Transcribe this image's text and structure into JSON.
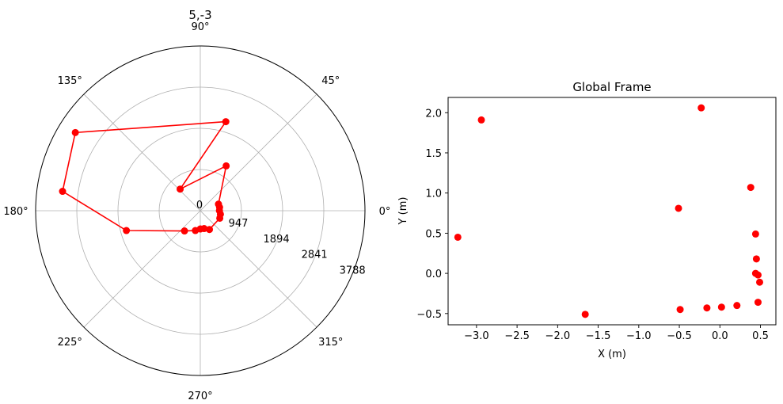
{
  "chart_data": [
    {
      "type": "scatter",
      "projection": "polar",
      "title": "5,-3",
      "theta_tick_labels": [
        "0°",
        "45°",
        "90°",
        "135°",
        "180°",
        "225°",
        "270°",
        "315°"
      ],
      "r_tick_values": [
        0,
        947,
        1894,
        2841,
        3788
      ],
      "r_tick_labels": [
        "0",
        "947",
        "1894",
        "2841",
        "3788"
      ],
      "rlim": [
        0,
        3788
      ],
      "grid": true,
      "line_connected": true,
      "marker_color": "#ff0000",
      "line_color": "#ff0000",
      "points": [
        {
          "theta_deg": 0.0,
          "r": 440
        },
        {
          "theta_deg": 350.0,
          "r": 470
        },
        {
          "theta_deg": 10.0,
          "r": 450
        },
        {
          "theta_deg": 20.0,
          "r": 445
        },
        {
          "theta_deg": 60.0,
          "r": 1190
        },
        {
          "theta_deg": 133.0,
          "r": 680
        },
        {
          "theta_deg": 74.0,
          "r": 2130
        },
        {
          "theta_deg": 148.0,
          "r": 3390
        },
        {
          "theta_deg": 172.0,
          "r": 3200
        },
        {
          "theta_deg": 195.0,
          "r": 1760
        },
        {
          "theta_deg": 232.0,
          "r": 590
        },
        {
          "theta_deg": 256.0,
          "r": 470
        },
        {
          "theta_deg": 270.0,
          "r": 420
        },
        {
          "theta_deg": 282.0,
          "r": 420
        },
        {
          "theta_deg": 296.0,
          "r": 480
        },
        {
          "theta_deg": 339.0,
          "r": 480
        }
      ]
    },
    {
      "type": "scatter",
      "title": "Global Frame",
      "xlabel": "X (m)",
      "ylabel": "Y (m)",
      "xlim": [
        -3.35,
        0.69
      ],
      "ylim": [
        -0.64,
        2.19
      ],
      "xticks": [
        -3.0,
        -2.5,
        -2.0,
        -1.5,
        -1.0,
        -0.5,
        0.0,
        0.5
      ],
      "xtick_labels": [
        "−3.0",
        "−2.5",
        "−2.0",
        "−1.5",
        "−1.0",
        "−0.5",
        "0.0",
        "0.5"
      ],
      "yticks": [
        -0.5,
        0.0,
        0.5,
        1.0,
        1.5,
        2.0
      ],
      "ytick_labels": [
        "−0.5",
        "0.0",
        "0.5",
        "1.0",
        "1.5",
        "2.0"
      ],
      "grid": false,
      "marker_color": "#ff0000",
      "x": [
        0.44,
        0.47,
        0.45,
        0.44,
        0.38,
        -0.51,
        -0.23,
        -2.94,
        -3.23,
        -1.66,
        -0.49,
        -0.16,
        0.02,
        0.21,
        0.47,
        0.49
      ],
      "y": [
        0.0,
        -0.02,
        0.18,
        0.49,
        1.07,
        0.81,
        2.06,
        1.91,
        0.45,
        -0.51,
        -0.45,
        -0.43,
        -0.42,
        -0.4,
        -0.36,
        -0.11
      ]
    }
  ]
}
